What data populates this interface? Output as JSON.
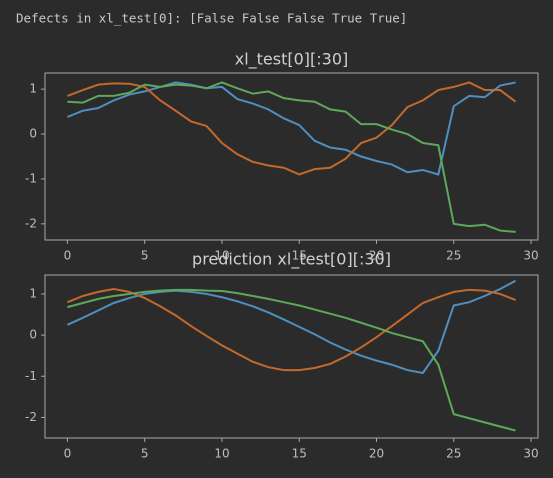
{
  "header": {
    "text": "Defects in xl_test[0]: [False False False  True  True]"
  },
  "chart_data": [
    {
      "type": "line",
      "title": "xl_test[0][:30]",
      "x": [
        0,
        1,
        2,
        3,
        4,
        5,
        6,
        7,
        8,
        9,
        10,
        11,
        12,
        13,
        14,
        15,
        16,
        17,
        18,
        19,
        20,
        21,
        22,
        23,
        24,
        25,
        26,
        27,
        28,
        29
      ],
      "xlim": [
        -1.45,
        30.45
      ],
      "xticks": [
        0,
        5,
        10,
        15,
        20,
        25,
        30
      ],
      "ylim": [
        -2.36,
        1.36
      ],
      "yticks": [
        -2,
        -1,
        0,
        1
      ],
      "series": [
        {
          "color": "#4f8fbf",
          "values": [
            0.38,
            0.52,
            0.58,
            0.75,
            0.88,
            0.95,
            1.05,
            1.15,
            1.1,
            1.02,
            1.05,
            0.78,
            0.68,
            0.55,
            0.35,
            0.2,
            -0.15,
            -0.3,
            -0.35,
            -0.5,
            -0.6,
            -0.68,
            -0.85,
            -0.8,
            -0.9,
            0.62,
            0.85,
            0.82,
            1.08,
            1.15
          ]
        },
        {
          "color": "#c4692c",
          "values": [
            0.85,
            0.98,
            1.1,
            1.13,
            1.12,
            1.05,
            0.75,
            0.52,
            0.28,
            0.18,
            -0.2,
            -0.45,
            -0.62,
            -0.7,
            -0.75,
            -0.9,
            -0.78,
            -0.75,
            -0.55,
            -0.2,
            -0.08,
            0.2,
            0.6,
            0.75,
            0.98,
            1.05,
            1.15,
            0.98,
            0.98,
            0.72
          ]
        },
        {
          "color": "#5ea85a",
          "values": [
            0.72,
            0.7,
            0.85,
            0.85,
            0.92,
            1.1,
            1.05,
            1.1,
            1.08,
            1.02,
            1.15,
            1.02,
            0.9,
            0.95,
            0.8,
            0.75,
            0.72,
            0.55,
            0.5,
            0.22,
            0.22,
            0.1,
            0.0,
            -0.2,
            -0.25,
            -2.0,
            -2.05,
            -2.02,
            -2.15,
            -2.18
          ]
        }
      ]
    },
    {
      "type": "line",
      "title": "prediction xl_test[0][:30]",
      "x": [
        0,
        1,
        2,
        3,
        4,
        5,
        6,
        7,
        8,
        9,
        10,
        11,
        12,
        13,
        14,
        15,
        16,
        17,
        18,
        19,
        20,
        21,
        22,
        23,
        24,
        25,
        26,
        27,
        28,
        29
      ],
      "xlim": [
        -1.45,
        30.45
      ],
      "xticks": [
        0,
        5,
        10,
        15,
        20,
        25,
        30
      ],
      "ylim": [
        -2.5,
        1.46
      ],
      "yticks": [
        -2,
        -1,
        0,
        1
      ],
      "series": [
        {
          "color": "#4f8fbf",
          "values": [
            0.25,
            0.42,
            0.6,
            0.78,
            0.9,
            1.0,
            1.05,
            1.08,
            1.05,
            1.0,
            0.92,
            0.82,
            0.7,
            0.55,
            0.38,
            0.2,
            0.02,
            -0.18,
            -0.35,
            -0.5,
            -0.62,
            -0.72,
            -0.85,
            -0.92,
            -0.38,
            0.72,
            0.8,
            0.95,
            1.12,
            1.32
          ]
        },
        {
          "color": "#c4692c",
          "values": [
            0.8,
            0.95,
            1.05,
            1.12,
            1.05,
            0.9,
            0.7,
            0.48,
            0.22,
            -0.02,
            -0.25,
            -0.45,
            -0.65,
            -0.78,
            -0.85,
            -0.85,
            -0.8,
            -0.7,
            -0.52,
            -0.3,
            -0.05,
            0.22,
            0.5,
            0.78,
            0.92,
            1.05,
            1.1,
            1.08,
            1.0,
            0.85
          ]
        },
        {
          "color": "#5ea85a",
          "values": [
            0.68,
            0.78,
            0.88,
            0.95,
            1.0,
            1.05,
            1.08,
            1.1,
            1.1,
            1.08,
            1.07,
            1.02,
            0.95,
            0.88,
            0.8,
            0.72,
            0.62,
            0.52,
            0.42,
            0.3,
            0.18,
            0.05,
            -0.05,
            -0.15,
            -0.72,
            -1.92,
            -2.02,
            -2.12,
            -2.22,
            -2.32
          ]
        }
      ]
    }
  ]
}
